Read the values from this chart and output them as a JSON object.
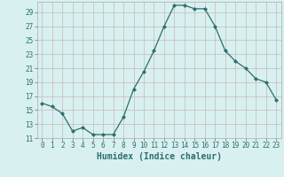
{
  "x": [
    0,
    1,
    2,
    3,
    4,
    5,
    6,
    7,
    8,
    9,
    10,
    11,
    12,
    13,
    14,
    15,
    16,
    17,
    18,
    19,
    20,
    21,
    22,
    23
  ],
  "y": [
    16,
    15.5,
    14.5,
    12,
    12.5,
    11.5,
    11.5,
    11.5,
    14,
    18,
    20.5,
    23.5,
    27,
    30,
    30,
    29.5,
    29.5,
    27,
    23.5,
    22,
    21,
    19.5,
    19,
    16.5
  ],
  "xlabel": "Humidex (Indice chaleur)",
  "xlim_min": -0.5,
  "xlim_max": 23.5,
  "ylim_min": 11,
  "ylim_max": 30.5,
  "yticks": [
    11,
    13,
    15,
    17,
    19,
    21,
    23,
    25,
    27,
    29
  ],
  "xticks": [
    0,
    1,
    2,
    3,
    4,
    5,
    6,
    7,
    8,
    9,
    10,
    11,
    12,
    13,
    14,
    15,
    16,
    17,
    18,
    19,
    20,
    21,
    22,
    23
  ],
  "line_color": "#2d6e6e",
  "marker": "D",
  "marker_size": 2.0,
  "bg_color": "#d8f0f0",
  "grid_color": "#c8b8b8",
  "tick_label_fontsize": 5.5,
  "xlabel_fontsize": 7.0,
  "linewidth": 0.9
}
